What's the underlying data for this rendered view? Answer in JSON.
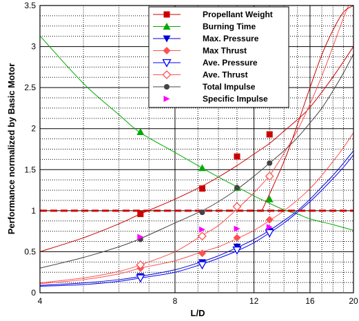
{
  "chart_data": {
    "type": "line",
    "xlabel": "L/D",
    "ylabel": "Performance normalized by Basic Motor",
    "x_scale": "log",
    "xlim": [
      4,
      20
    ],
    "ylim": [
      0,
      3.5
    ],
    "x_ticks": [
      4,
      8,
      12,
      16,
      20
    ],
    "y_ticks": [
      0,
      0.5,
      1,
      1.5,
      2,
      2.5,
      3,
      3.5
    ],
    "x_minor_ticks": [
      5,
      6,
      7,
      9,
      10,
      11,
      13,
      14,
      15,
      17,
      18,
      19
    ],
    "y_minor_step": 0.125,
    "grid": true,
    "legend_position": "top-right",
    "reference_line": {
      "y": 1.0,
      "color": "#cc0000",
      "style": "dashed"
    },
    "series": [
      {
        "name": "Propellant Weight",
        "color": "#cc0000",
        "marker": "square-filled",
        "curve_x": [
          4,
          5,
          6,
          6.7,
          8,
          9.2,
          10,
          11,
          12,
          13,
          14,
          15,
          16,
          18,
          20
        ],
        "curve_y": [
          0.5,
          0.67,
          0.84,
          0.96,
          1.14,
          1.3,
          1.41,
          1.55,
          1.69,
          1.82,
          1.97,
          2.11,
          2.26,
          2.63,
          3.0
        ],
        "points_x": [
          6.7,
          9.2,
          11,
          13
        ],
        "points_y": [
          0.96,
          1.27,
          1.66,
          1.93
        ]
      },
      {
        "name": "Burning Time",
        "color": "#00aa00",
        "marker": "triangle-filled",
        "curve_x": [
          4,
          5,
          6,
          6.7,
          8,
          9.2,
          10,
          11,
          12,
          13,
          14,
          15,
          16,
          18,
          20
        ],
        "curve_y": [
          3.13,
          2.55,
          2.17,
          1.95,
          1.71,
          1.52,
          1.41,
          1.29,
          1.18,
          1.09,
          1.01,
          0.96,
          0.9,
          0.83,
          0.76
        ],
        "points_x": [
          6.7,
          9.2,
          11,
          13
        ],
        "points_y": [
          1.96,
          1.52,
          1.28,
          1.14
        ]
      },
      {
        "name": "Max. Pressure",
        "color": "#0000cc",
        "marker": "triangle-down-filled",
        "curve_x": [
          4,
          5,
          6,
          6.7,
          8,
          9.2,
          10,
          11,
          12,
          13,
          14,
          15,
          16,
          17,
          18,
          19,
          20
        ],
        "curve_y": [
          0.09,
          0.12,
          0.16,
          0.2,
          0.28,
          0.38,
          0.45,
          0.55,
          0.65,
          0.76,
          0.88,
          1.0,
          1.14,
          1.29,
          1.43,
          1.58,
          1.73
        ],
        "points_x": [
          6.7,
          9.2,
          11,
          13
        ],
        "points_y": [
          0.2,
          0.37,
          0.56,
          0.75
        ]
      },
      {
        "name": "Max Thrust",
        "color": "#ff5050",
        "marker": "diamond-filled",
        "curve_x": [
          4,
          5,
          6,
          6.7,
          8,
          9.2,
          10,
          11,
          12,
          13,
          14,
          15,
          16,
          17,
          18,
          19,
          20
        ],
        "curve_y": [
          0.11,
          0.16,
          0.23,
          0.3,
          0.39,
          0.5,
          0.56,
          0.66,
          0.76,
          0.88,
          1.0,
          1.13,
          1.27,
          1.43,
          1.6,
          1.77,
          1.95
        ],
        "points_x": [
          6.7,
          9.2,
          11,
          13
        ],
        "points_y": [
          0.3,
          0.48,
          0.67,
          0.89
        ]
      },
      {
        "name": "Ave. Pressure",
        "color": "#0000ff",
        "marker": "triangle-down-open",
        "curve_x": [
          4,
          5,
          6,
          6.7,
          8,
          9.2,
          10,
          11,
          12,
          13,
          14,
          15,
          16,
          17,
          18,
          19,
          20
        ],
        "curve_y": [
          0.08,
          0.1,
          0.14,
          0.18,
          0.25,
          0.35,
          0.42,
          0.51,
          0.61,
          0.73,
          0.85,
          0.98,
          1.11,
          1.25,
          1.39,
          1.53,
          1.68
        ],
        "points_x": [
          6.7,
          9.2,
          11,
          13
        ],
        "points_y": [
          0.18,
          0.34,
          0.52,
          0.73
        ]
      },
      {
        "name": "Ave. Thrust",
        "color": "#ff5050",
        "marker": "diamond-open",
        "curve_x": [
          4,
          5,
          6,
          6.7,
          8,
          9.2,
          10,
          11,
          12,
          13,
          14,
          15,
          16,
          17,
          18,
          19,
          19.5
        ],
        "curve_y": [
          0.12,
          0.18,
          0.26,
          0.34,
          0.5,
          0.7,
          0.82,
          1.02,
          1.22,
          1.43,
          1.7,
          1.98,
          2.3,
          2.64,
          3.0,
          3.35,
          3.5
        ],
        "points_x": [
          6.7,
          9.2,
          11,
          13
        ],
        "points_y": [
          0.34,
          0.69,
          1.05,
          1.42
        ]
      },
      {
        "name": "Total Impulse",
        "color": "#444444",
        "marker": "circle-filled",
        "curve_x": [
          4,
          5,
          6,
          6.7,
          8,
          9.2,
          10,
          11,
          12,
          13,
          14,
          15,
          16,
          17,
          18,
          19,
          20
        ],
        "curve_y": [
          0.3,
          0.43,
          0.56,
          0.66,
          0.85,
          1.0,
          1.11,
          1.26,
          1.42,
          1.58,
          1.73,
          1.89,
          2.07,
          2.25,
          2.46,
          2.68,
          2.91
        ],
        "points_x": [
          6.7,
          9.2,
          11,
          13
        ],
        "points_y": [
          0.65,
          0.98,
          1.28,
          1.58
        ]
      },
      {
        "name": "Specific Impulse",
        "color": "#ff00ff",
        "marker": "triangle-right-filled",
        "curve_x": [],
        "curve_y": [],
        "points_x": [
          6.7,
          9.2,
          11,
          13
        ],
        "points_y": [
          0.68,
          0.77,
          0.78,
          0.8
        ]
      }
    ],
    "extra_curve": {
      "color": "#cc0000",
      "x": [
        12.5,
        14,
        15,
        16,
        17,
        18,
        19,
        20
      ],
      "y": [
        1.0,
        1.6,
        2.05,
        2.5,
        2.9,
        3.2,
        3.42,
        3.5
      ]
    }
  }
}
